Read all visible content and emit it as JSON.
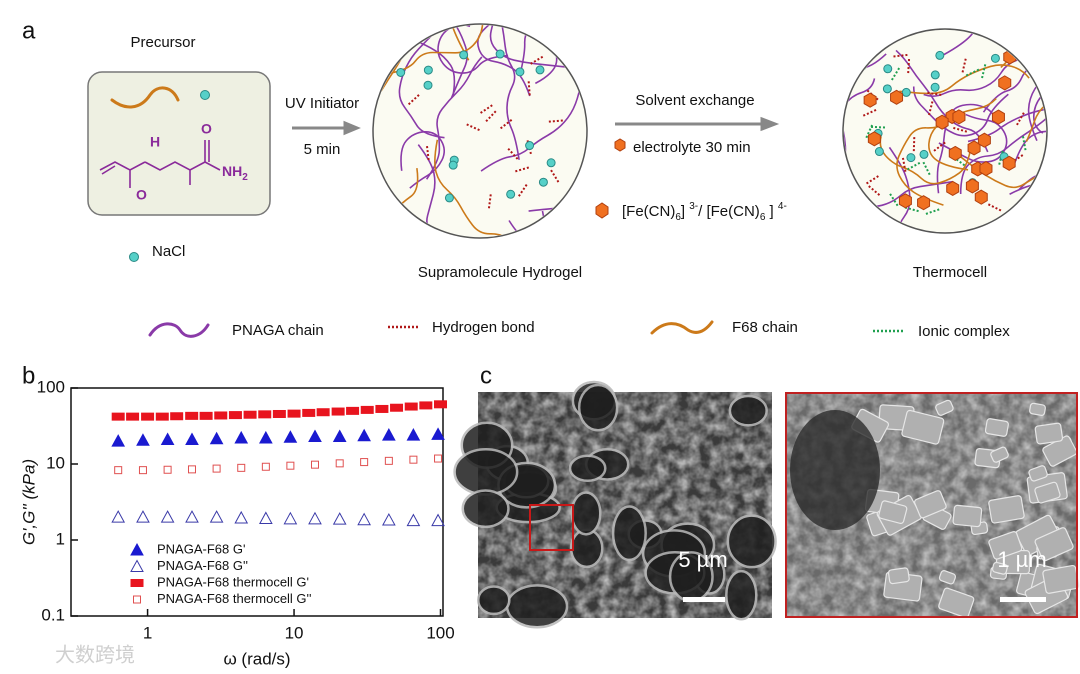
{
  "panel_a": {
    "label": "a",
    "precursor": "Precursor",
    "molecule": {
      "h": "H",
      "o1": "O",
      "o2": "O",
      "nh": "NH",
      "sub": "2"
    },
    "nacl": "NaCl",
    "uv": "UV Initiator",
    "uv_time": "5 min",
    "solvent": "Solvent exchange",
    "electrolyte": "electrolyte 30 min",
    "redox": [
      "[Fe(CN)",
      "6",
      "] ",
      "3-",
      "/ [Fe(CN)",
      "6",
      " ] ",
      "4-"
    ],
    "hydrogel": "Supramolecule Hydrogel",
    "thermocell": "Thermocell",
    "legend": [
      "PNAGA chain",
      "Hydrogen  bond",
      "F68 chain",
      "Ionic complex"
    ]
  },
  "panel_b_label": "b",
  "chart_data": {
    "type": "scatter",
    "xlabel": "ω (rad/s)",
    "ylabel": "G',G'' (kPa)",
    "xscale": "log",
    "yscale": "log",
    "xlim": [
      0.3,
      104
    ],
    "ylim": [
      0.1,
      100
    ],
    "xticks": [
      1,
      10,
      100
    ],
    "yticks": [
      0.1,
      1,
      10,
      100
    ],
    "series": [
      {
        "name": "PNAGA-F68 G'",
        "color": "#1a1ad0",
        "marker": "triangle",
        "filled": true,
        "x": [
          0.63,
          0.93,
          1.37,
          2.01,
          2.96,
          4.36,
          6.42,
          9.44,
          13.9,
          20.5,
          30.1,
          44.4,
          65.3,
          96.2
        ],
        "values": [
          20,
          20.5,
          21,
          21,
          21.5,
          22,
          22,
          22.5,
          23,
          23,
          23.5,
          24,
          24,
          24.5
        ]
      },
      {
        "name": "PNAGA-F68 G''",
        "color": "#3a3aa8",
        "marker": "triangle",
        "filled": false,
        "x": [
          0.63,
          0.93,
          1.37,
          2.01,
          2.96,
          4.36,
          6.42,
          9.44,
          13.9,
          20.5,
          30.1,
          44.4,
          65.3,
          96.2
        ],
        "values": [
          2.0,
          2.0,
          2.0,
          2.0,
          2.0,
          1.95,
          1.92,
          1.9,
          1.9,
          1.88,
          1.85,
          1.83,
          1.8,
          1.8
        ]
      },
      {
        "name": "PNAGA-F68 thermocell G'",
        "color": "#e8141e",
        "marker": "square",
        "filled": true,
        "x": [
          0.63,
          0.79,
          1,
          1.26,
          1.58,
          2,
          2.51,
          3.16,
          3.98,
          5.01,
          6.31,
          7.94,
          10,
          12.6,
          15.8,
          20,
          25.1,
          31.6,
          39.8,
          50.1,
          63.1,
          79.4,
          100
        ],
        "values": [
          42,
          42,
          42,
          42,
          42.5,
          43,
          43,
          43.5,
          44,
          44.5,
          45,
          45.5,
          46,
          47,
          48,
          49,
          50,
          51.5,
          53,
          55,
          57,
          59,
          61
        ]
      },
      {
        "name": "PNAGA-F68 thermocell G''",
        "color": "#e05050",
        "marker": "square",
        "filled": false,
        "x": [
          0.63,
          0.93,
          1.37,
          2.01,
          2.96,
          4.36,
          6.42,
          9.44,
          13.9,
          20.5,
          30.1,
          44.4,
          65.3,
          96.2
        ],
        "values": [
          8.3,
          8.3,
          8.4,
          8.5,
          8.7,
          8.9,
          9.2,
          9.5,
          9.8,
          10.2,
          10.6,
          11,
          11.4,
          11.8
        ]
      }
    ]
  },
  "panel_c": {
    "label": "c",
    "scale_left": "5 µm",
    "scale_right": "1 µm"
  },
  "watermark": "大数跨境"
}
